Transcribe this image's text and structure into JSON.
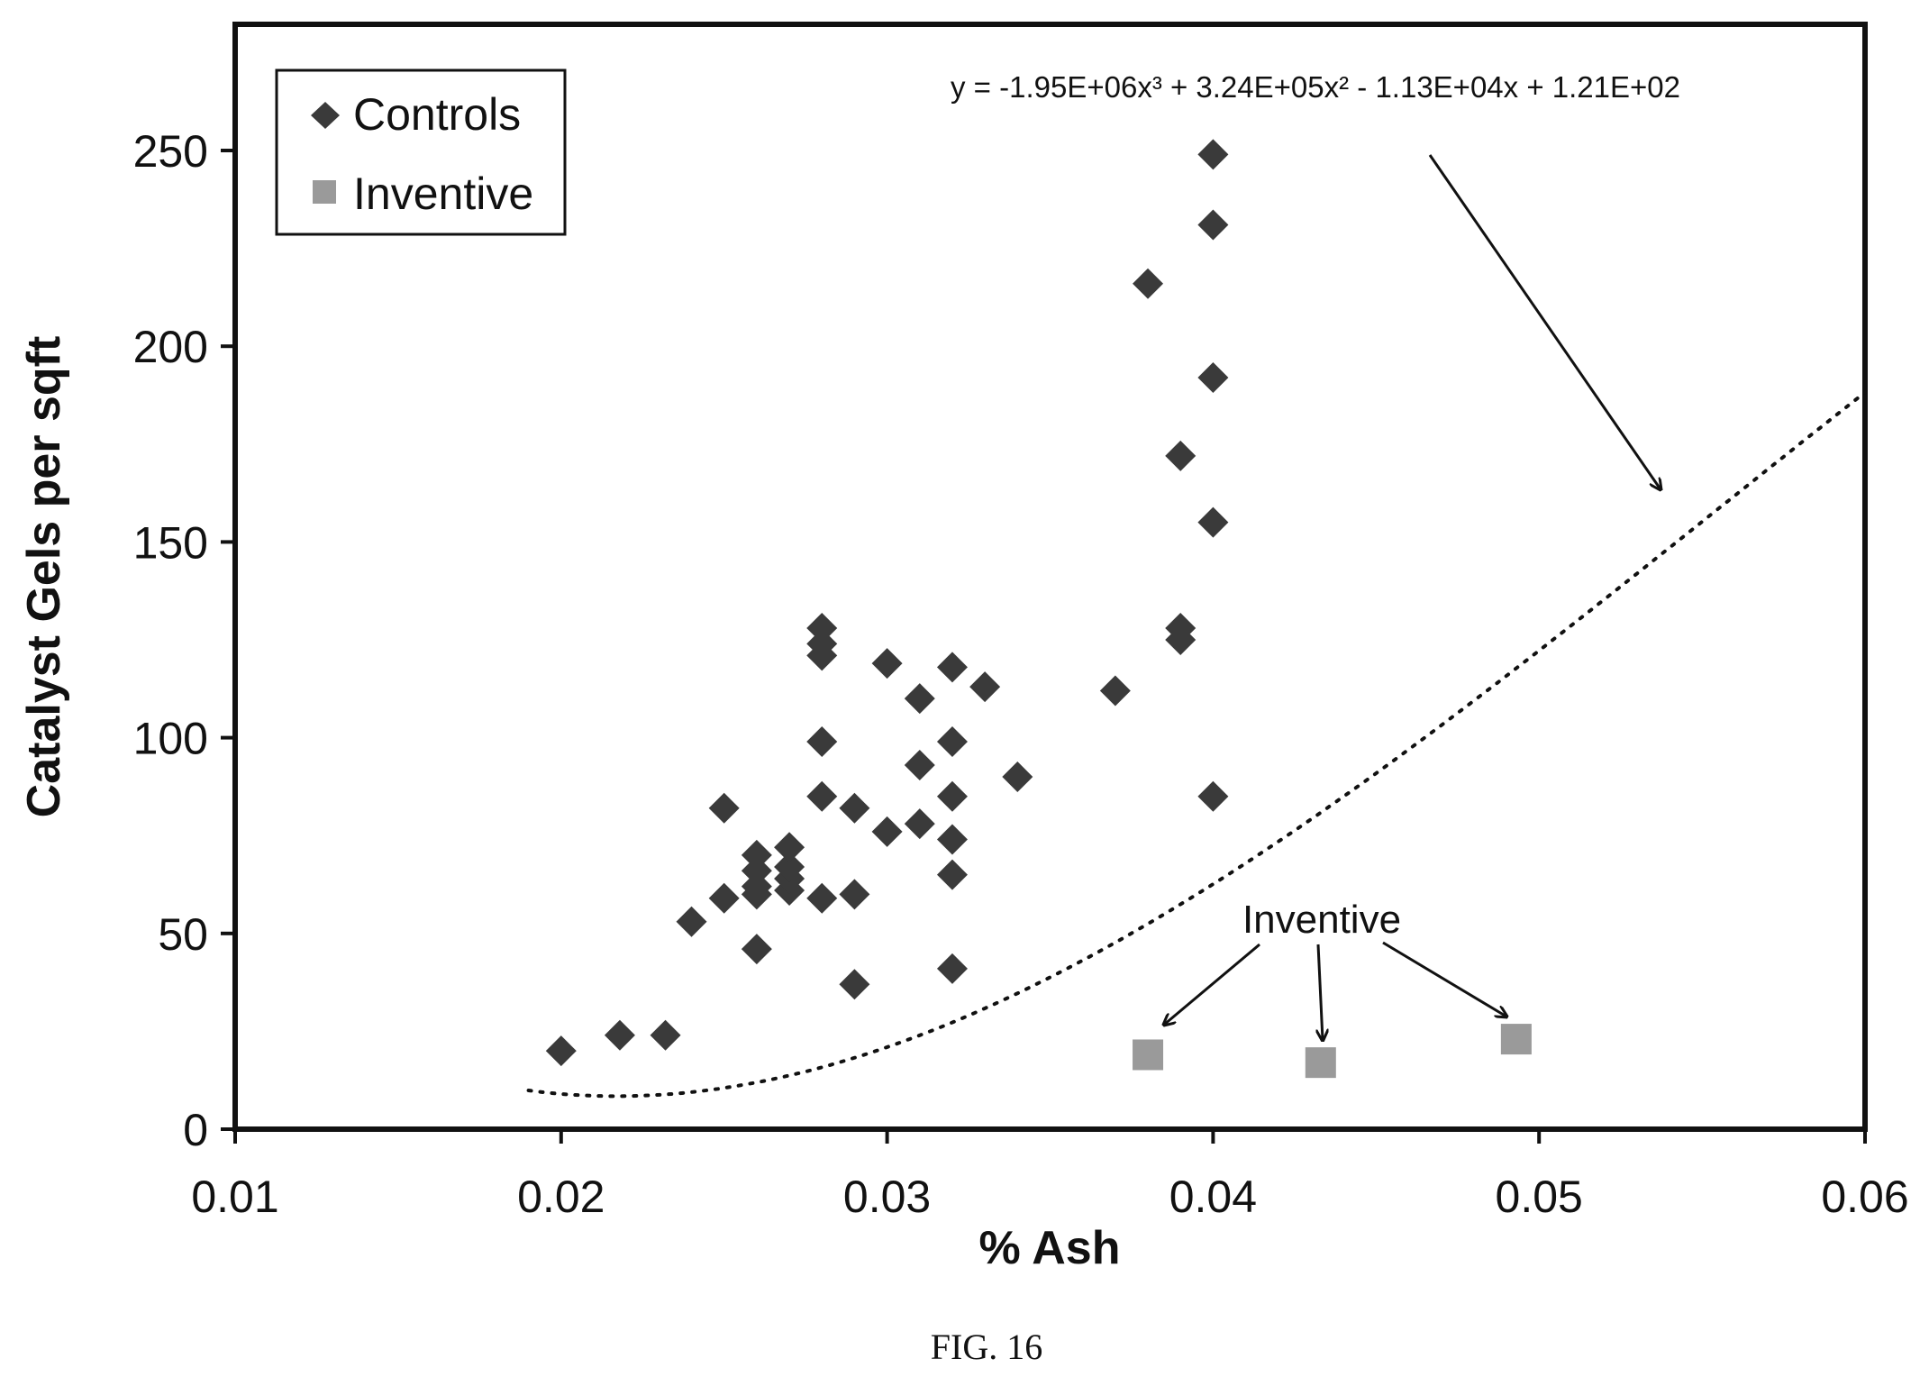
{
  "chart_data": {
    "type": "scatter",
    "xlabel": "% Ash",
    "ylabel": "Catalyst Gels per sqft",
    "xlim": [
      0.01,
      0.06
    ],
    "ylim": [
      0,
      250
    ],
    "xticks": [
      "0.01",
      "0.02",
      "0.03",
      "0.04",
      "0.05",
      "0.06"
    ],
    "yticks": [
      "0",
      "50",
      "100",
      "150",
      "200",
      "250"
    ],
    "legend": {
      "position": "top-left"
    },
    "series": [
      {
        "name": "Controls",
        "marker": "diamond",
        "color": "#3a3a3a",
        "points": [
          [
            0.02,
            20
          ],
          [
            0.0218,
            24
          ],
          [
            0.0232,
            24
          ],
          [
            0.024,
            53
          ],
          [
            0.025,
            59
          ],
          [
            0.025,
            82
          ],
          [
            0.026,
            46
          ],
          [
            0.026,
            60
          ],
          [
            0.026,
            62
          ],
          [
            0.026,
            66
          ],
          [
            0.026,
            70
          ],
          [
            0.027,
            61
          ],
          [
            0.027,
            64
          ],
          [
            0.027,
            67
          ],
          [
            0.027,
            72
          ],
          [
            0.028,
            59
          ],
          [
            0.028,
            85
          ],
          [
            0.028,
            99
          ],
          [
            0.028,
            121
          ],
          [
            0.028,
            124
          ],
          [
            0.028,
            128
          ],
          [
            0.029,
            37
          ],
          [
            0.029,
            60
          ],
          [
            0.029,
            82
          ],
          [
            0.03,
            76
          ],
          [
            0.03,
            119
          ],
          [
            0.031,
            78
          ],
          [
            0.031,
            93
          ],
          [
            0.031,
            110
          ],
          [
            0.032,
            41
          ],
          [
            0.032,
            65
          ],
          [
            0.032,
            74
          ],
          [
            0.032,
            85
          ],
          [
            0.032,
            99
          ],
          [
            0.032,
            118
          ],
          [
            0.033,
            113
          ],
          [
            0.034,
            90
          ],
          [
            0.037,
            112
          ],
          [
            0.038,
            216
          ],
          [
            0.039,
            125
          ],
          [
            0.039,
            128
          ],
          [
            0.039,
            172
          ],
          [
            0.04,
            85
          ],
          [
            0.04,
            155
          ],
          [
            0.04,
            192
          ],
          [
            0.04,
            231
          ],
          [
            0.04,
            249
          ]
        ]
      },
      {
        "name": "Inventive",
        "marker": "square",
        "color": "#9a9a9a",
        "points": [
          [
            0.038,
            19
          ],
          [
            0.0433,
            17
          ],
          [
            0.0493,
            23
          ]
        ]
      }
    ],
    "trendline": {
      "equation_label": "y = -1.95E+06x³ + 3.24E+05x² - 1.13E+04x + 1.21E+02",
      "coefficients": [
        -1950000,
        324000,
        -11300,
        121
      ],
      "x_range": [
        0.019,
        0.06
      ],
      "style": "dotted"
    },
    "annotations": {
      "inventive_label": "Inventive"
    }
  },
  "caption": "FIG. 16"
}
